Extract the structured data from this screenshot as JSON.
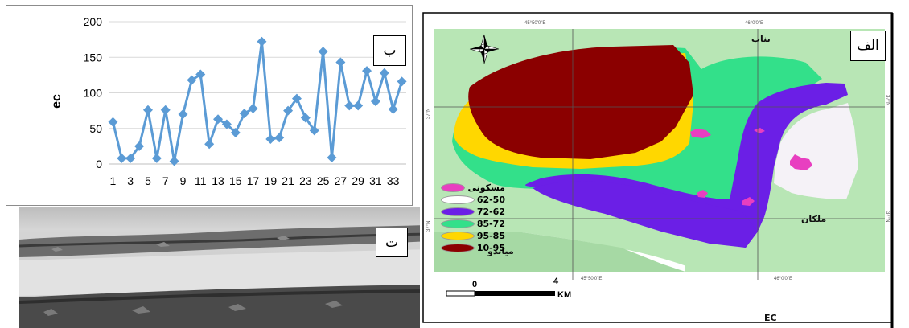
{
  "chart_panel": {
    "label": "ب",
    "chart_data": {
      "type": "line",
      "title": "",
      "xlabel": "",
      "ylabel": "ec",
      "ylim": [
        0,
        200
      ],
      "yticks": [
        0,
        50,
        100,
        150,
        200
      ],
      "xtick_labels": [
        "1",
        "3",
        "5",
        "7",
        "9",
        "11",
        "13",
        "15",
        "17",
        "19",
        "21",
        "23",
        "25",
        "27",
        "29",
        "31",
        "33"
      ],
      "x": [
        1,
        2,
        3,
        4,
        5,
        6,
        7,
        8,
        9,
        10,
        11,
        12,
        13,
        14,
        15,
        16,
        17,
        18,
        19,
        20,
        21,
        22,
        23,
        24,
        25,
        26,
        27,
        28,
        29,
        30,
        31,
        32,
        33,
        34
      ],
      "series": [
        {
          "color": "#5b9bd5",
          "marker": "diamond",
          "values": [
            59,
            8,
            8,
            25,
            76,
            8,
            76,
            4,
            70,
            118,
            126,
            28,
            63,
            56,
            44,
            71,
            78,
            172,
            35,
            37,
            75,
            92,
            65,
            47,
            158,
            9,
            143,
            82,
            82,
            131,
            88,
            128,
            77,
            116
          ]
        }
      ],
      "grid": "horizontal",
      "legend": "none"
    }
  },
  "photo_panel": {
    "label": "ت"
  },
  "map_panel": {
    "label": "الف",
    "north_arrow_icon": "compass-rose-icon",
    "place_names": {
      "top_right": "بناب",
      "right": "ملکان",
      "left": "مياندو"
    },
    "coord_labels": {
      "top_1": "45°50'0\"E",
      "top_2": "46°0'0\"E",
      "bottom_1": "45°50'0\"E",
      "bottom_2": "46°0'0\"E",
      "left_1": "37°N",
      "left_2": "37°N",
      "right_1": "37°N",
      "right_2": "37°N"
    },
    "legend": [
      {
        "label": "مسکونی",
        "color": "#e83fc0"
      },
      {
        "label": "62-50",
        "color": "#ffffff"
      },
      {
        "label": "72-62",
        "color": "#6b1fe6"
      },
      {
        "label": "85-72",
        "color": "#33e08a"
      },
      {
        "label": "95-85",
        "color": "#ffd700"
      },
      {
        "label": "10-95",
        "color": "#8b0000"
      }
    ],
    "scale": {
      "start": "0",
      "end": "4",
      "unit": "KM"
    },
    "map_caption": "EC",
    "colors": {
      "background_green": "#b8e6b5",
      "dark_red": "#8b0000",
      "yellow": "#ffd700",
      "green": "#33e08a",
      "purple": "#6b1fe6",
      "white_zone": "#f5f2f7",
      "magenta": "#e83fc0"
    }
  }
}
